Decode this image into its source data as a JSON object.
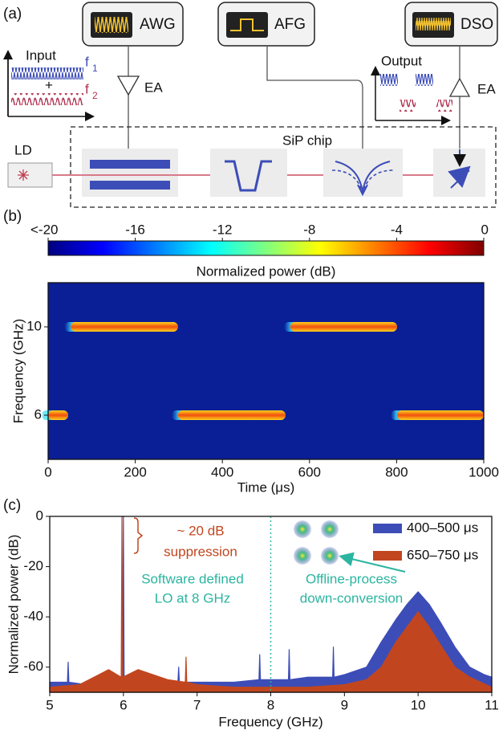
{
  "diagram": {
    "panel_label": "(a)",
    "awg": "AWG",
    "afg": "AFG",
    "dso": "DSO",
    "amp_in": "EA",
    "amp_out": "EA",
    "input_title": "Input",
    "plus": "+",
    "f1": "f",
    "f1_sub": "1",
    "f2": "f",
    "f2_sub": "2",
    "output_title": "Output",
    "laser": "LD",
    "chip": "SiP chip"
  },
  "chart_data": [
    {
      "type": "heatmap",
      "panel_label": "(b)",
      "colormap": "jet",
      "colorbar": {
        "label": "Normalized power (dB)",
        "lim": [
          -20,
          0
        ],
        "ticks": [
          {
            "value": -20,
            "label": "<-20"
          },
          -16,
          -12,
          -8,
          -4,
          0
        ]
      },
      "xlabel": "Time (μs)",
      "ylabel": "Frequency (GHz)",
      "xlim": [
        0,
        1000
      ],
      "xticks": [
        0,
        200,
        400,
        600,
        800,
        1000
      ],
      "ylim": [
        4,
        12
      ],
      "yticks": [
        6,
        10
      ],
      "segments": [
        {
          "frequency": 6,
          "start": 0,
          "end": 46
        },
        {
          "frequency": 10,
          "start": 52,
          "end": 298
        },
        {
          "frequency": 6,
          "start": 298,
          "end": 545
        },
        {
          "frequency": 10,
          "start": 556,
          "end": 801
        },
        {
          "frequency": 6,
          "start": 801,
          "end": 1000
        }
      ]
    },
    {
      "type": "line",
      "panel_label": "(c)",
      "legend": "upper right",
      "xlabel": "Frequency (GHz)",
      "ylabel": "Normalized power (dB)",
      "xlim": [
        5,
        11
      ],
      "xticks": [
        5,
        6,
        7,
        8,
        9,
        10,
        11
      ],
      "ylim": [
        -70,
        0
      ],
      "yticks": [
        0,
        -20,
        -40,
        -60
      ],
      "lo_frequency": 8,
      "annotations": {
        "suppression": [
          "~ 20 dB",
          "suppression"
        ],
        "lo": [
          "Software defined",
          "LO at 8 GHz"
        ],
        "offline": [
          "Offline-process",
          "down-conversion"
        ]
      },
      "series": [
        {
          "name": "400–500 μs",
          "color": "#3d4db7",
          "x": [
            5.0,
            5.24,
            5.25,
            5.26,
            5.5,
            5.75,
            5.99,
            6.0,
            6.01,
            6.5,
            6.74,
            6.75,
            6.76,
            7.0,
            7.5,
            7.84,
            7.85,
            7.86,
            8.0,
            8.24,
            8.25,
            8.26,
            8.5,
            8.84,
            8.85,
            8.86,
            9.0,
            9.3,
            9.5,
            9.7,
            9.85,
            10.0,
            10.15,
            10.3,
            10.5,
            10.7,
            10.9,
            11.0
          ],
          "values": [
            -66,
            -66,
            -58,
            -66,
            -67,
            -66,
            -66,
            0,
            -66,
            -66,
            -66,
            -60,
            -66,
            -66,
            -66,
            -65,
            -55,
            -65,
            -65,
            -65,
            -53,
            -65,
            -64,
            -64,
            -52,
            -64,
            -63,
            -60,
            -50,
            -41,
            -35,
            -30,
            -35,
            -42,
            -52,
            -60,
            -63,
            -64
          ]
        },
        {
          "name": "650–750 μs",
          "color": "#c1461f",
          "x": [
            5.0,
            5.4,
            5.6,
            5.8,
            5.97,
            5.98,
            5.99,
            6.2,
            6.4,
            6.6,
            6.84,
            6.85,
            6.86,
            7.0,
            7.5,
            8.0,
            8.5,
            9.0,
            9.3,
            9.5,
            9.7,
            9.85,
            10.0,
            10.15,
            10.3,
            10.5,
            10.7,
            11.0
          ],
          "values": [
            -68,
            -67,
            -64,
            -61,
            -64,
            0,
            -64,
            -61,
            -63,
            -65,
            -66,
            -56,
            -66,
            -67,
            -68,
            -68,
            -68,
            -67,
            -65,
            -60,
            -50,
            -44,
            -38,
            -44,
            -51,
            -60,
            -64,
            -68
          ]
        }
      ]
    }
  ]
}
